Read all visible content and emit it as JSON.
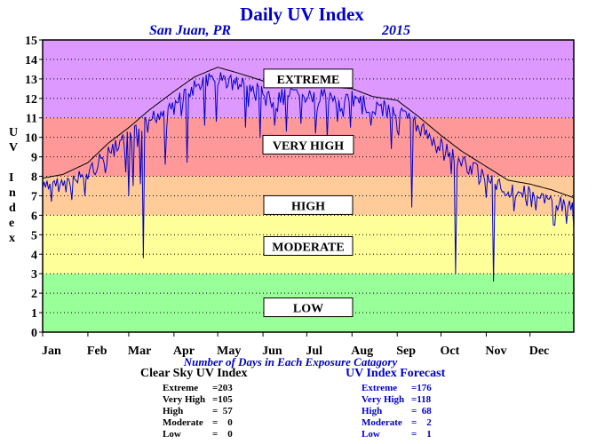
{
  "title": "Daily UV Index",
  "location": "San Juan, PR",
  "year": "2015",
  "chart_data": {
    "type": "line",
    "title": "Daily UV Index",
    "subtitle": "San Juan, PR 2015",
    "ylabel": "UV Index",
    "ylim": [
      0,
      15
    ],
    "yticks": [
      "0",
      "1",
      "2",
      "3",
      "4",
      "5",
      "6",
      "7",
      "8",
      "9",
      "10",
      "11",
      "12",
      "13",
      "14",
      "15"
    ],
    "months": [
      "Jan",
      "Feb",
      "Mar",
      "Apr",
      "May",
      "Jun",
      "Jul",
      "Aug",
      "Sep",
      "Oct",
      "Nov",
      "Dec"
    ],
    "xlim": [
      1,
      365
    ],
    "bands": [
      {
        "label": "LOW",
        "from": 0,
        "to": 3,
        "color": "#99ff99"
      },
      {
        "label": "MODERATE",
        "from": 3,
        "to": 6,
        "color": "#ffff99"
      },
      {
        "label": "HIGH",
        "from": 6,
        "to": 8,
        "color": "#ffcc99"
      },
      {
        "label": "VERY HIGH",
        "from": 8,
        "to": 11,
        "color": "#ff9999"
      },
      {
        "label": "EXTREME",
        "from": 11,
        "to": 15,
        "color": "#dd99ff"
      }
    ],
    "band_label_positions": [
      {
        "label": "EXTREME",
        "y": 13.0
      },
      {
        "label": "VERY HIGH",
        "y": 9.6
      },
      {
        "label": "HIGH",
        "y": 6.5
      },
      {
        "label": "MODERATE",
        "y": 4.4
      },
      {
        "label": "LOW",
        "y": 1.25
      }
    ],
    "clear_sky_envelope": [
      [
        1,
        7.8
      ],
      [
        15,
        8.0
      ],
      [
        32,
        8.6
      ],
      [
        46,
        9.6
      ],
      [
        60,
        10.4
      ],
      [
        74,
        11.3
      ],
      [
        90,
        12.2
      ],
      [
        105,
        13.0
      ],
      [
        121,
        13.5
      ],
      [
        135,
        13.2
      ],
      [
        152,
        12.8
      ],
      [
        166,
        12.6
      ],
      [
        182,
        12.5
      ],
      [
        196,
        12.5
      ],
      [
        213,
        12.4
      ],
      [
        227,
        12.0
      ],
      [
        244,
        11.8
      ],
      [
        258,
        11.0
      ],
      [
        274,
        10.0
      ],
      [
        288,
        9.2
      ],
      [
        305,
        8.4
      ],
      [
        320,
        7.7
      ],
      [
        335,
        7.5
      ],
      [
        350,
        7.2
      ],
      [
        365,
        6.8
      ]
    ],
    "drops": [
      {
        "day": 12,
        "value": 7.2
      },
      {
        "day": 30,
        "value": 7.0
      },
      {
        "day": 45,
        "value": 8.6
      },
      {
        "day": 58,
        "value": 8.2
      },
      {
        "day": 60,
        "value": 7.0
      },
      {
        "day": 63,
        "value": 7.5
      },
      {
        "day": 68,
        "value": 7.6
      },
      {
        "day": 70,
        "value": 3.8
      },
      {
        "day": 85,
        "value": 8.6
      },
      {
        "day": 100,
        "value": 8.7
      },
      {
        "day": 112,
        "value": 10.6
      },
      {
        "day": 120,
        "value": 10.8
      },
      {
        "day": 140,
        "value": 10.5
      },
      {
        "day": 150,
        "value": 10.0
      },
      {
        "day": 160,
        "value": 10.6
      },
      {
        "day": 168,
        "value": 10.3
      },
      {
        "day": 178,
        "value": 10.7
      },
      {
        "day": 188,
        "value": 10.2
      },
      {
        "day": 196,
        "value": 10.0
      },
      {
        "day": 203,
        "value": 10.8
      },
      {
        "day": 212,
        "value": 10.5
      },
      {
        "day": 226,
        "value": 10.6
      },
      {
        "day": 240,
        "value": 9.4
      },
      {
        "day": 245,
        "value": 10.1
      },
      {
        "day": 254,
        "value": 6.4
      },
      {
        "day": 264,
        "value": 10.4
      },
      {
        "day": 273,
        "value": 9.3
      },
      {
        "day": 284,
        "value": 3.0
      },
      {
        "day": 300,
        "value": 7.6
      },
      {
        "day": 310,
        "value": 2.6
      },
      {
        "day": 324,
        "value": 6.2
      },
      {
        "day": 332,
        "value": 6.8
      },
      {
        "day": 345,
        "value": 6.6
      },
      {
        "day": 357,
        "value": 6.2
      }
    ],
    "xaxis_title": "Number of Days in Each Exposure Catagory"
  },
  "clear_sky": {
    "heading": "Clear Sky UV Index",
    "rows": [
      {
        "label": "Extreme",
        "value": "=203"
      },
      {
        "label": "Very High",
        "value": "=105"
      },
      {
        "label": "High",
        "value": "=  57"
      },
      {
        "label": "Moderate",
        "value": "=    0"
      },
      {
        "label": "Low",
        "value": "=    0"
      }
    ]
  },
  "forecast": {
    "heading": "UV Index Forecast",
    "rows": [
      {
        "label": "Extreme",
        "value": "=176"
      },
      {
        "label": "Very High",
        "value": "=118"
      },
      {
        "label": "High",
        "value": "=  68"
      },
      {
        "label": "Moderate",
        "value": "=    2"
      },
      {
        "label": "Low",
        "value": "=    1"
      }
    ]
  },
  "ylabel_letters": [
    "U",
    "V",
    "",
    "I",
    "n",
    "d",
    "e",
    "x"
  ]
}
